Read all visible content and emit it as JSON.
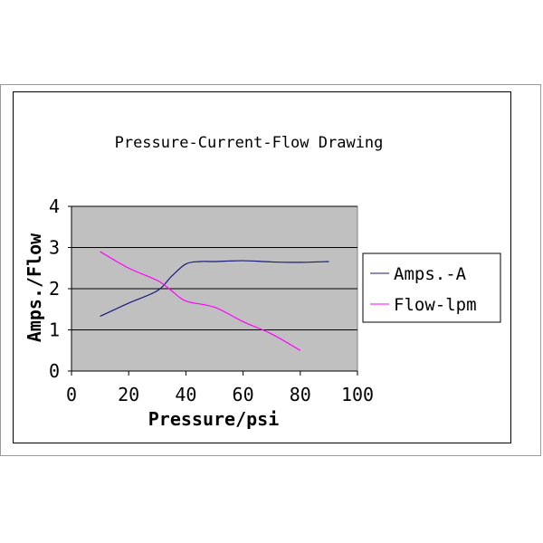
{
  "chart_data": {
    "type": "line",
    "title": "Pressure-Current-Flow Drawing",
    "xlabel": "Pressure/psi",
    "ylabel": "Amps./Flow",
    "xlim": [
      0,
      100
    ],
    "ylim": [
      0,
      4
    ],
    "xticks": [
      "0",
      "20",
      "40",
      "60",
      "80",
      "100"
    ],
    "yticks": [
      "0",
      "1",
      "2",
      "3",
      "4"
    ],
    "grid": true,
    "plot_background": "#c0c0c0",
    "legend_position": "right",
    "series": [
      {
        "name": "Amps.-A",
        "color": "#1a1a7a",
        "x": [
          10,
          20,
          30,
          35,
          40,
          45,
          50,
          60,
          70,
          80,
          90
        ],
        "y": [
          1.33,
          1.65,
          1.95,
          2.3,
          2.6,
          2.66,
          2.66,
          2.68,
          2.65,
          2.64,
          2.66
        ]
      },
      {
        "name": "Flow-lpm",
        "color": "#ff00ff",
        "x": [
          10,
          20,
          30,
          35,
          40,
          50,
          60,
          70,
          80
        ],
        "y": [
          2.9,
          2.5,
          2.2,
          1.95,
          1.7,
          1.55,
          1.2,
          0.9,
          0.5
        ]
      }
    ]
  }
}
